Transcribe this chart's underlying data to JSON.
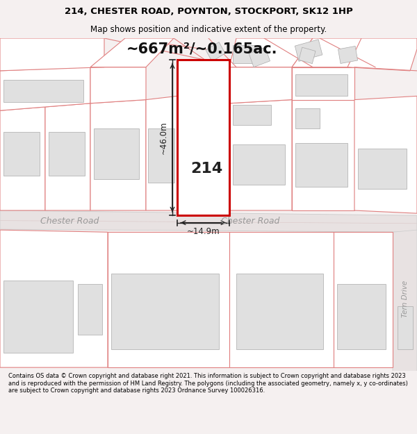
{
  "title_line1": "214, CHESTER ROAD, POYNTON, STOCKPORT, SK12 1HP",
  "title_line2": "Map shows position and indicative extent of the property.",
  "area_text": "~667m²/~0.165ac.",
  "property_number": "214",
  "dim_height": "~46.0m",
  "dim_width": "~14.9m",
  "road_label_left": "Chester Road",
  "road_label_right": "Chester Road",
  "road_label_tern": "Tern Drive",
  "footer_text": "Contains OS data © Crown copyright and database right 2021. This information is subject to Crown copyright and database rights 2023 and is reproduced with the permission of HM Land Registry. The polygons (including the associated geometry, namely x, y co-ordinates) are subject to Crown copyright and database rights 2023 Ordnance Survey 100026316.",
  "bg_color": "#f5f0f0",
  "map_bg": "#ffffff",
  "road_color": "#e8e2e2",
  "plot_outline_color": "#e08080",
  "property_outline_color": "#cc0000",
  "building_fill": "#e0e0e0",
  "building_edge": "#aaaaaa",
  "dim_line_color": "#222222",
  "road_text_color": "#999999",
  "title_fontsize": 9.5,
  "subtitle_fontsize": 8.5,
  "area_fontsize": 15,
  "footer_fontsize": 6.0
}
